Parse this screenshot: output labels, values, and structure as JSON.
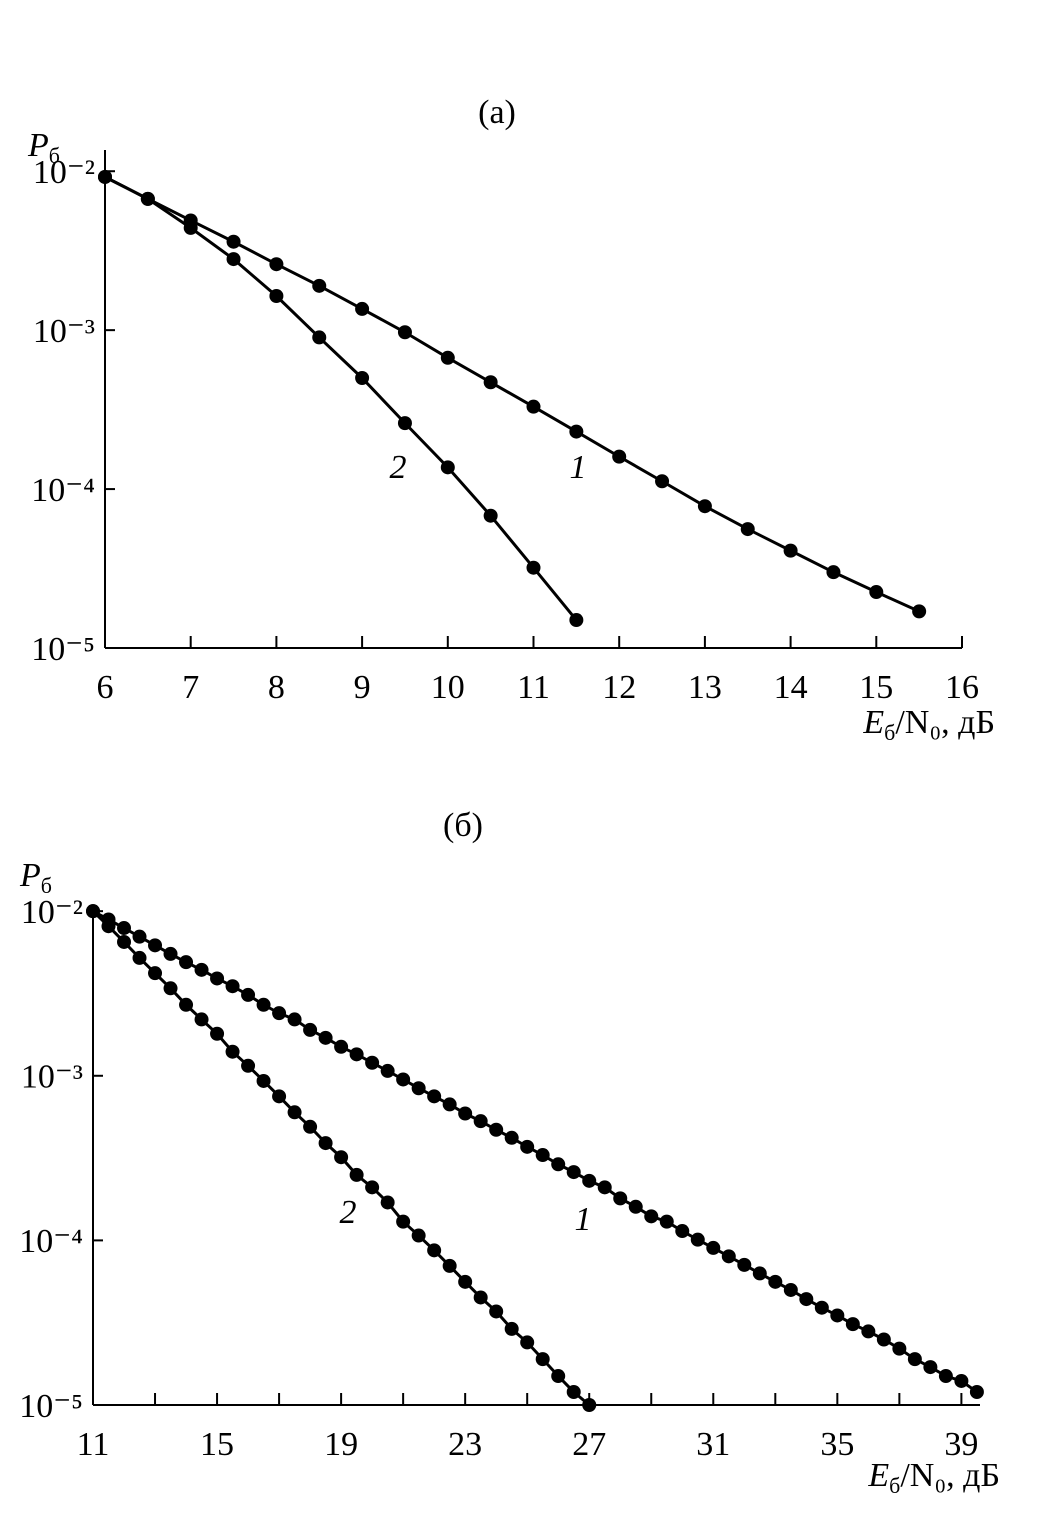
{
  "chart_data": [
    {
      "type": "line",
      "title": "(а)",
      "ylabel": "Pб",
      "xlabel": "Eб/N₀, дБ",
      "log_y": true,
      "marker": "circle",
      "xlim": [
        6,
        16
      ],
      "xticks": [
        6,
        7,
        8,
        9,
        10,
        11,
        12,
        13,
        14,
        15,
        16
      ],
      "ylim": [
        1e-05,
        0.0136
      ],
      "yticks": [
        {
          "value": 0.01,
          "label": "10⁻²"
        },
        {
          "value": 0.001,
          "label": "10⁻³"
        },
        {
          "value": 0.0001,
          "label": "10⁻⁴"
        },
        {
          "value": 1e-05,
          "label": "10⁻⁵"
        }
      ],
      "series": [
        {
          "name": "1",
          "color": "#000000",
          "x": [
            6,
            6.5,
            7,
            7.5,
            8,
            8.5,
            9,
            9.5,
            10,
            10.5,
            11,
            11.5,
            12,
            12.5,
            13,
            13.5,
            14,
            14.5,
            15,
            15.5
          ],
          "values": [
            0.0092,
            0.0067,
            0.0049,
            0.0036,
            0.0026,
            0.0019,
            0.00136,
            0.00097,
            0.00067,
            0.00047,
            0.00033,
            0.00023,
            0.00016,
            0.000112,
            7.8e-05,
            5.6e-05,
            4.1e-05,
            3e-05,
            2.25e-05,
            1.7e-05
          ]
        },
        {
          "name": "2",
          "color": "#000000",
          "x": [
            6,
            6.5,
            7,
            7.5,
            8,
            8.5,
            9,
            9.5,
            10,
            10.5,
            11,
            11.5
          ],
          "values": [
            0.0092,
            0.0067,
            0.0044,
            0.0028,
            0.00164,
            0.0009,
            0.0005,
            0.00026,
            0.000137,
            6.8e-05,
            3.2e-05,
            1.5e-05
          ]
        }
      ]
    },
    {
      "type": "line",
      "title": "(б)",
      "ylabel": "Pб",
      "xlabel": "Eб/N₀, дБ",
      "log_y": true,
      "marker": "circle",
      "xlim": [
        11,
        39.6
      ],
      "xticks": [
        11,
        15,
        19,
        23,
        27,
        31,
        35,
        39
      ],
      "xminor_ticks": [
        13,
        17,
        21,
        25,
        29,
        33,
        37
      ],
      "ylim": [
        1e-05,
        0.0109
      ],
      "yticks": [
        {
          "value": 0.01,
          "label": "10⁻²"
        },
        {
          "value": 0.001,
          "label": "10⁻³"
        },
        {
          "value": 0.0001,
          "label": "10⁻⁴"
        },
        {
          "value": 1e-05,
          "label": "10⁻⁵"
        }
      ],
      "series": [
        {
          "name": "1",
          "color": "#000000",
          "x": [
            11,
            11.5,
            12,
            12.5,
            13,
            13.5,
            14,
            14.5,
            15,
            15.5,
            16,
            16.5,
            17,
            17.5,
            18,
            18.5,
            19,
            19.5,
            20,
            20.5,
            21,
            21.5,
            22,
            22.5,
            23,
            23.5,
            24,
            24.5,
            25,
            25.5,
            26,
            26.5,
            27,
            27.5,
            28,
            28.5,
            29,
            29.5,
            30,
            30.5,
            31,
            31.5,
            32,
            32.5,
            33,
            33.5,
            34,
            34.5,
            35,
            35.5,
            36,
            36.5,
            37,
            37.5,
            38,
            38.5,
            39,
            39.5
          ],
          "values": [
            0.01,
            0.0089,
            0.0079,
            0.007,
            0.0062,
            0.0055,
            0.0049,
            0.0044,
            0.0039,
            0.0035,
            0.0031,
            0.0027,
            0.0024,
            0.0022,
            0.0019,
            0.0017,
            0.0015,
            0.00135,
            0.0012,
            0.00107,
            0.00095,
            0.00084,
            0.00075,
            0.00067,
            0.00059,
            0.00053,
            0.00047,
            0.00042,
            0.00037,
            0.00033,
            0.00029,
            0.00026,
            0.00023,
            0.00021,
            0.00018,
            0.00016,
            0.00014,
            0.00013,
            0.000114,
            0.000101,
            9e-05,
            8e-05,
            7.1e-05,
            6.3e-05,
            5.6e-05,
            5e-05,
            4.4e-05,
            3.9e-05,
            3.5e-05,
            3.1e-05,
            2.8e-05,
            2.5e-05,
            2.2e-05,
            1.9e-05,
            1.7e-05,
            1.5e-05,
            1.4e-05,
            1.2e-05
          ]
        },
        {
          "name": "2",
          "color": "#000000",
          "x": [
            11,
            11.5,
            12,
            12.5,
            13,
            13.5,
            14,
            14.5,
            15,
            15.5,
            16,
            16.5,
            17,
            17.5,
            18,
            18.5,
            19,
            19.5,
            20,
            20.5,
            21,
            21.5,
            22,
            22.5,
            23,
            23.5,
            24,
            24.5,
            25,
            25.5,
            26,
            26.5,
            27
          ],
          "values": [
            0.01,
            0.0081,
            0.0065,
            0.0052,
            0.0042,
            0.0034,
            0.0027,
            0.0022,
            0.0018,
            0.0014,
            0.00115,
            0.00093,
            0.00075,
            0.0006,
            0.00049,
            0.00039,
            0.00032,
            0.00025,
            0.00021,
            0.00017,
            0.00013,
            0.000107,
            8.7e-05,
            7e-05,
            5.6e-05,
            4.5e-05,
            3.7e-05,
            2.9e-05,
            2.4e-05,
            1.9e-05,
            1.5e-05,
            1.2e-05,
            1e-05
          ]
        }
      ]
    }
  ]
}
